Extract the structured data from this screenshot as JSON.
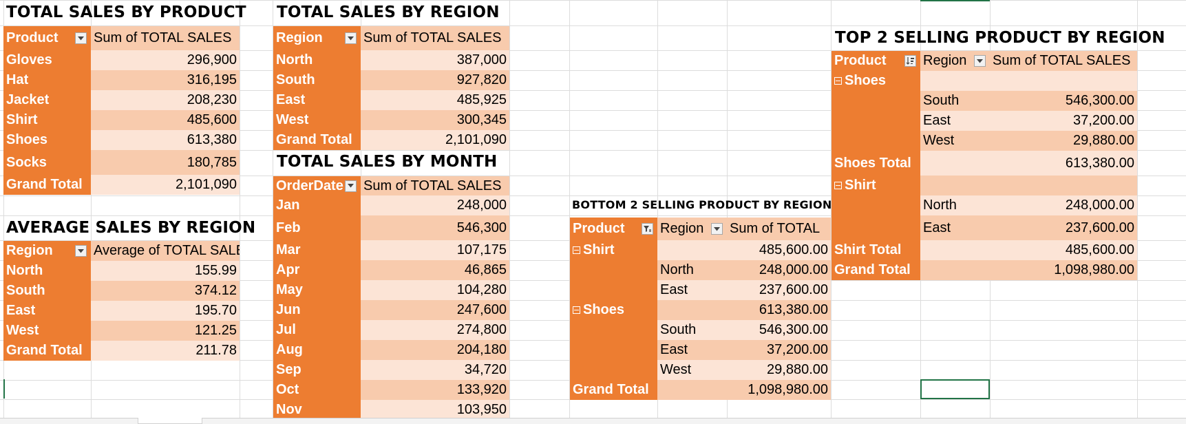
{
  "titles": {
    "by_product": "TOTAL SALES BY PRODUCT",
    "by_region": "TOTAL SALES BY REGION",
    "by_month": "TOTAL SALES BY MONTH",
    "avg_region": "AVERAGE SALES BY REGION",
    "bottom2": "BOTTOM 2 SELLING PRODUCT BY REGION",
    "top2": "TOP 2 SELLING PRODUCT BY REGION"
  },
  "product_pivot": {
    "col1": "Product",
    "col2": "Sum of TOTAL SALES",
    "rows": [
      {
        "label": "Gloves",
        "value": "296,900"
      },
      {
        "label": "Hat",
        "value": "316,195"
      },
      {
        "label": "Jacket",
        "value": "208,230"
      },
      {
        "label": "Shirt",
        "value": "485,600"
      },
      {
        "label": "Shoes",
        "value": "613,380"
      },
      {
        "label": "Socks",
        "value": "180,785"
      },
      {
        "label": "Grand Total",
        "value": "2,101,090"
      }
    ]
  },
  "avg_pivot": {
    "col1": "Region",
    "col2": "Average of TOTAL SALES",
    "rows": [
      {
        "label": "North",
        "value": "155.99"
      },
      {
        "label": "South",
        "value": "374.12"
      },
      {
        "label": "East",
        "value": "195.70"
      },
      {
        "label": "West",
        "value": "121.25"
      },
      {
        "label": "Grand Total",
        "value": "211.78"
      }
    ]
  },
  "region_pivot": {
    "col1": "Region",
    "col2": "Sum of TOTAL SALES",
    "rows": [
      {
        "label": "North",
        "value": "387,000"
      },
      {
        "label": "South",
        "value": "927,820"
      },
      {
        "label": "East",
        "value": "485,925"
      },
      {
        "label": "West",
        "value": "300,345"
      },
      {
        "label": "Grand Total",
        "value": "2,101,090"
      }
    ]
  },
  "month_pivot": {
    "col1": "OrderDate",
    "col2": "Sum of TOTAL SALES",
    "rows": [
      {
        "label": "Jan",
        "value": "248,000"
      },
      {
        "label": "Feb",
        "value": "546,300"
      },
      {
        "label": "Mar",
        "value": "107,175"
      },
      {
        "label": "Apr",
        "value": "46,865"
      },
      {
        "label": "May",
        "value": "104,280"
      },
      {
        "label": "Jun",
        "value": "247,600"
      },
      {
        "label": "Jul",
        "value": "274,800"
      },
      {
        "label": "Aug",
        "value": "204,180"
      },
      {
        "label": "Sep",
        "value": "34,720"
      },
      {
        "label": "Oct",
        "value": "133,920"
      },
      {
        "label": "Nov",
        "value": "103,950"
      }
    ]
  },
  "bottom_pivot": {
    "col1": "Product",
    "col2": "Region",
    "col3": "Sum of TOTAL",
    "rows": [
      {
        "product": "Shirt",
        "region": "",
        "value": "485,600.00"
      },
      {
        "product": "",
        "region": "North",
        "value": "248,000.00"
      },
      {
        "product": "",
        "region": "East",
        "value": "237,600.00"
      },
      {
        "product": "Shoes",
        "region": "",
        "value": "613,380.00"
      },
      {
        "product": "",
        "region": "South",
        "value": "546,300.00"
      },
      {
        "product": "",
        "region": "East",
        "value": "37,200.00"
      },
      {
        "product": "",
        "region": "West",
        "value": "29,880.00"
      },
      {
        "product": "Grand Total",
        "region": "",
        "value": "1,098,980.00"
      }
    ]
  },
  "top_pivot": {
    "col1": "Product",
    "col2": "Region",
    "col3": "Sum of TOTAL SALES",
    "rows": [
      {
        "product": "Shoes",
        "region": "",
        "value": ""
      },
      {
        "product": "",
        "region": "South",
        "value": "546,300.00"
      },
      {
        "product": "",
        "region": "East",
        "value": "37,200.00"
      },
      {
        "product": "",
        "region": "West",
        "value": "29,880.00"
      },
      {
        "product": "Shoes Total",
        "region": "",
        "value": "613,380.00"
      },
      {
        "product": "Shirt",
        "region": "",
        "value": ""
      },
      {
        "product": "",
        "region": "North",
        "value": "248,000.00"
      },
      {
        "product": "",
        "region": "East",
        "value": "237,600.00"
      },
      {
        "product": "Shirt Total",
        "region": "",
        "value": "485,600.00"
      },
      {
        "product": "Grand Total",
        "region": "",
        "value": "1,098,980.00"
      }
    ]
  }
}
